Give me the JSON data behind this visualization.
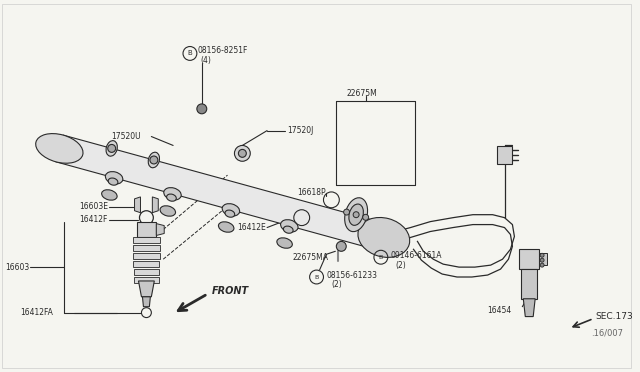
{
  "bg": "#f5f5f0",
  "lc": "#2a2a2a",
  "figsize": [
    6.4,
    3.72
  ],
  "dpi": 100,
  "labels": {
    "bolt_top": "08156-8251F",
    "bolt_top2": "(4)",
    "17520U": "17520U",
    "17520J": "17520J",
    "22675M": "22675M",
    "16618P": "16618P",
    "16603E": "16603E",
    "16412F": "16412F",
    "16603": "16603",
    "16412FA": "16412FA",
    "16412E": "16412E",
    "22675MA": "22675MA",
    "bolt_b1": "08156-61233",
    "bolt_b1_2": "(2)",
    "bolt_b2": "09146-6161A",
    "bolt_b2_2": "(2)",
    "front": "FRONT",
    "16454": "16454",
    "sec173": "SEC.173",
    "partnum": ".16/007"
  }
}
